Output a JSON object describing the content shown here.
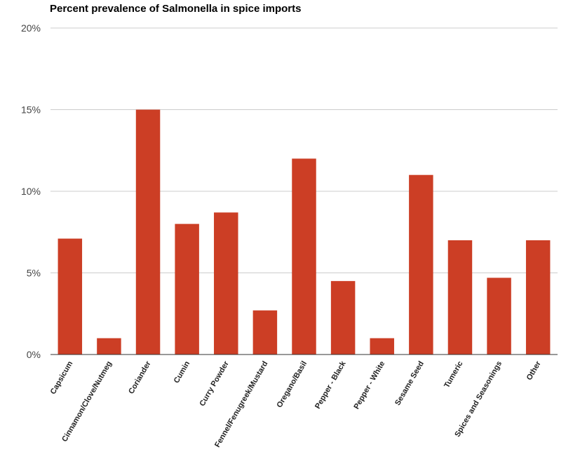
{
  "chart_data": {
    "type": "bar",
    "title": "Percent prevalence of Salmonella in spice imports",
    "xlabel": "",
    "ylabel": "",
    "categories": [
      "Capsicum",
      "Cinnamon/Clove/Nutmeg",
      "Coriander",
      "Cumin",
      "Curry Powder",
      "Fennel/Fenugreek/Mustard",
      "Oregano/Basil",
      "Pepper - Black",
      "Pepper - White",
      "Sesame Seed",
      "Tumeric",
      "Spices and Seasonings",
      "Other"
    ],
    "values": [
      7.1,
      1.0,
      15.0,
      8.0,
      8.7,
      2.7,
      12.0,
      4.5,
      1.0,
      11.0,
      7.0,
      4.7,
      7.0
    ],
    "ylim": [
      0,
      20
    ],
    "y_ticks": [
      "0%",
      "5%",
      "10%",
      "15%",
      "20%"
    ],
    "y_tick_values": [
      0,
      5,
      10,
      15,
      20
    ],
    "grid": true,
    "legend": "none",
    "bar_color": "#cc3e25",
    "grid_color": "#cccccc",
    "baseline_color": "#333333"
  }
}
